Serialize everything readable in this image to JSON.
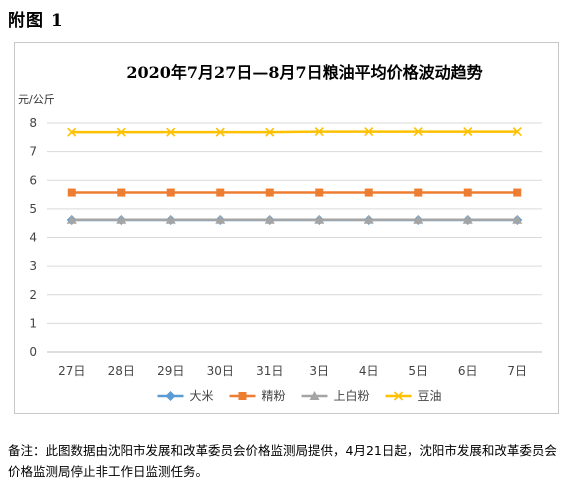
{
  "heading": "附图 1",
  "note": "备注：此图数据由沈阳市发展和改革委员会价格监测局提供，4月21日起，沈阳市发展和改革委员会价格监测局停止非工作日监测任务。",
  "chart_data": {
    "type": "line",
    "title": "2020年7月27日—8月7日粮油平均价格波动趋势",
    "ylabel": "元/公斤",
    "xlabel": "",
    "ylim": [
      0,
      8
    ],
    "yticks": [
      0,
      1,
      2,
      3,
      4,
      5,
      6,
      7,
      8
    ],
    "grid": true,
    "legend_position": "bottom",
    "categories": [
      "27日",
      "28日",
      "29日",
      "30日",
      "31日",
      "3日",
      "4日",
      "5日",
      "6日",
      "7日"
    ],
    "series": [
      {
        "name": "大米",
        "color": "#5b9bd5",
        "marker": "diamond",
        "values": [
          4.61,
          4.61,
          4.61,
          4.61,
          4.61,
          4.61,
          4.61,
          4.61,
          4.61,
          4.61
        ]
      },
      {
        "name": "精粉",
        "color": "#ed7d31",
        "marker": "square",
        "values": [
          5.57,
          5.57,
          5.57,
          5.57,
          5.57,
          5.57,
          5.57,
          5.57,
          5.57,
          5.57
        ]
      },
      {
        "name": "上白粉",
        "color": "#a5a5a5",
        "marker": "triangle",
        "values": [
          4.62,
          4.62,
          4.62,
          4.62,
          4.62,
          4.62,
          4.62,
          4.62,
          4.62,
          4.62
        ]
      },
      {
        "name": "豆油",
        "color": "#ffc000",
        "marker": "x",
        "values": [
          7.68,
          7.68,
          7.68,
          7.68,
          7.68,
          7.7,
          7.7,
          7.7,
          7.7,
          7.7
        ]
      }
    ]
  }
}
